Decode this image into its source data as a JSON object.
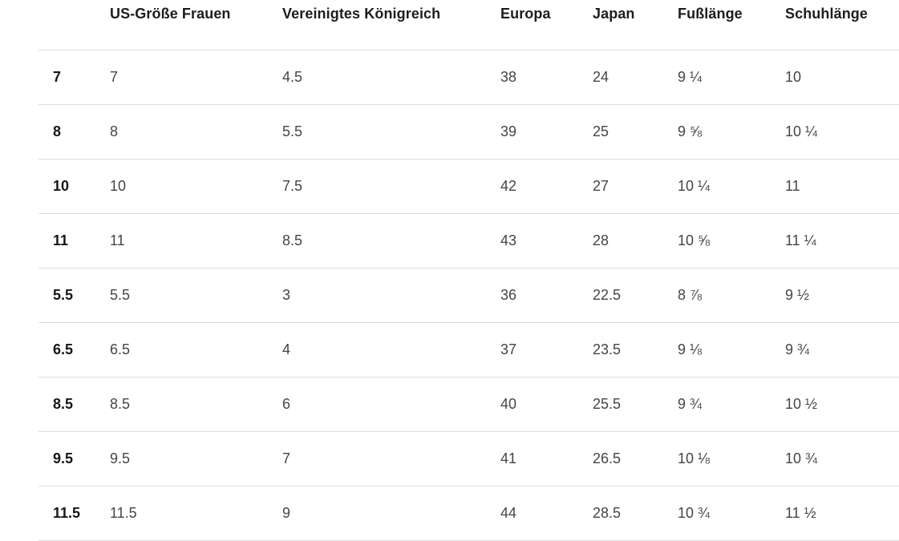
{
  "table": {
    "columns": [
      {
        "label": ""
      },
      {
        "label": "US-Größe Frauen"
      },
      {
        "label": "Vereinigtes Königreich"
      },
      {
        "label": "Europa"
      },
      {
        "label": "Japan"
      },
      {
        "label": "Fußlänge"
      },
      {
        "label": "Schuhlänge"
      }
    ],
    "rows": [
      [
        "7",
        "7",
        "4.5",
        "38",
        "24",
        "9 ¼",
        "10"
      ],
      [
        "8",
        "8",
        "5.5",
        "39",
        "25",
        "9 ⅝",
        "10 ¼"
      ],
      [
        "10",
        "10",
        "7.5",
        "42",
        "27",
        "10 ¼",
        "11"
      ],
      [
        "11",
        "11",
        "8.5",
        "43",
        "28",
        "10 ⅝",
        "11 ¼"
      ],
      [
        "5.5",
        "5.5",
        "3",
        "36",
        "22.5",
        "8 ⅞",
        "9 ½"
      ],
      [
        "6.5",
        "6.5",
        "4",
        "37",
        "23.5",
        "9 ⅛",
        "9 ¾"
      ],
      [
        "8.5",
        "8.5",
        "6",
        "40",
        "25.5",
        "9 ¾",
        "10 ½"
      ],
      [
        "9.5",
        "9.5",
        "7",
        "41",
        "26.5",
        "10 ⅛",
        "10 ¾"
      ],
      [
        "11.5",
        "11.5",
        "9",
        "44",
        "28.5",
        "10 ¾",
        "11 ½"
      ]
    ]
  },
  "colors": {
    "background": "#ffffff",
    "header_text": "#1d1d1d",
    "row_header_text": "#161616",
    "cell_text": "#454545",
    "divider": "#dcdcdc"
  }
}
